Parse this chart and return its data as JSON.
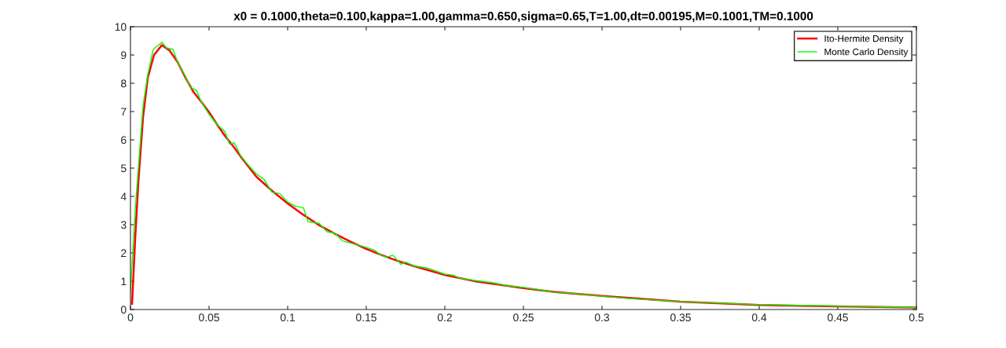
{
  "chart_data": {
    "type": "line",
    "title": "x0 = 0.1000,theta=0.100,kappa=1.00,gamma=0.650,sigma=0.65,T=1.00,dt=0.00195,M=0.1001,TM=0.1000",
    "xlim": [
      0,
      0.5
    ],
    "xticks": [
      0,
      0.05,
      0.1,
      0.15,
      0.2,
      0.25,
      0.3,
      0.35,
      0.4,
      0.45,
      0.5
    ],
    "ylim": [
      0,
      10
    ],
    "yticks": [
      0,
      1,
      2,
      3,
      4,
      5,
      6,
      7,
      8,
      9,
      10
    ],
    "grid": false,
    "legend": "top right",
    "series": [
      {
        "name": "Ito-Hermite Density",
        "color": "#ff0000",
        "x": [
          0.001,
          0.003,
          0.005,
          0.008,
          0.011,
          0.015,
          0.02,
          0.025,
          0.03,
          0.035,
          0.04,
          0.045,
          0.05,
          0.055,
          0.06,
          0.065,
          0.07,
          0.08,
          0.09,
          0.1,
          0.11,
          0.12,
          0.13,
          0.14,
          0.15,
          0.16,
          0.17,
          0.18,
          0.2,
          0.22,
          0.25,
          0.27,
          0.3,
          0.35,
          0.4,
          0.45,
          0.5
        ],
        "values": [
          0.2,
          2.5,
          4.5,
          6.8,
          8.2,
          9.0,
          9.35,
          9.15,
          8.75,
          8.2,
          7.7,
          7.35,
          6.98,
          6.55,
          6.15,
          5.8,
          5.42,
          4.7,
          4.2,
          3.75,
          3.35,
          2.98,
          2.68,
          2.4,
          2.14,
          1.92,
          1.72,
          1.54,
          1.22,
          0.99,
          0.76,
          0.62,
          0.48,
          0.28,
          0.16,
          0.11,
          0.07
        ]
      },
      {
        "name": "Monte Carlo Density",
        "color": "#00ff00",
        "x": [
          0.0,
          0.003,
          0.005,
          0.008,
          0.011,
          0.0145,
          0.02,
          0.023,
          0.027,
          0.03,
          0.035,
          0.038,
          0.042,
          0.045,
          0.05,
          0.055,
          0.06,
          0.063,
          0.066,
          0.07,
          0.075,
          0.08,
          0.085,
          0.09,
          0.095,
          0.1,
          0.105,
          0.11,
          0.113,
          0.12,
          0.125,
          0.13,
          0.135,
          0.14,
          0.15,
          0.155,
          0.16,
          0.163,
          0.167,
          0.172,
          0.175,
          0.18,
          0.19,
          0.2,
          0.205,
          0.21,
          0.22,
          0.23,
          0.24,
          0.25,
          0.26,
          0.27,
          0.28,
          0.3,
          0.32,
          0.35,
          0.4,
          0.45,
          0.5
        ],
        "values": [
          0.6,
          3.5,
          5.0,
          7.2,
          8.3,
          9.2,
          9.45,
          9.25,
          9.2,
          8.75,
          8.25,
          7.85,
          7.75,
          7.35,
          6.9,
          6.55,
          6.3,
          5.85,
          5.9,
          5.45,
          5.1,
          4.8,
          4.6,
          4.15,
          4.1,
          3.8,
          3.65,
          3.6,
          3.1,
          3.05,
          2.75,
          2.7,
          2.42,
          2.35,
          2.2,
          2.1,
          1.9,
          1.85,
          1.92,
          1.6,
          1.68,
          1.55,
          1.45,
          1.25,
          1.22,
          1.1,
          1.02,
          0.95,
          0.84,
          0.78,
          0.7,
          0.6,
          0.58,
          0.47,
          0.38,
          0.28,
          0.17,
          0.12,
          0.07
        ]
      }
    ]
  }
}
